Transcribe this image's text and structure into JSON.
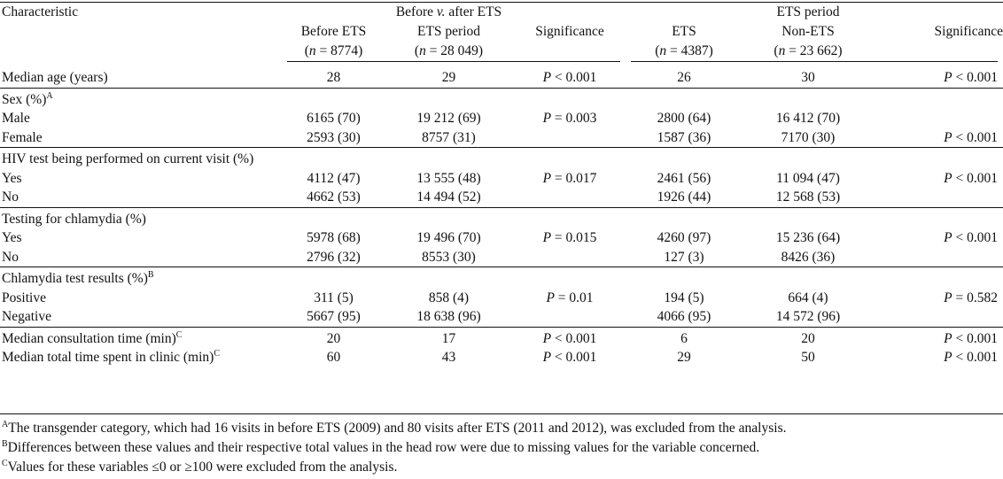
{
  "header": {
    "characteristic": "Characteristic",
    "group1": "Before v. after ETS",
    "group1_prefix": "Before ",
    "group1_v": "v.",
    "group1_suffix": " after ETS",
    "group2": "ETS period",
    "col1": {
      "label": "Before ETS",
      "n_prefix": "(",
      "n_var": "n",
      "n_value": " = 8774)"
    },
    "col2": {
      "label": "ETS period",
      "n_prefix": "(",
      "n_var": "n",
      "n_value": " = 28 049)"
    },
    "col3": {
      "label": "Significance"
    },
    "col4": {
      "label": "ETS",
      "n_prefix": "(",
      "n_var": "n",
      "n_value": " = 4387)"
    },
    "col5": {
      "label": "Non-ETS",
      "n_prefix": "(",
      "n_var": "n",
      "n_value": " = 23 662)"
    },
    "col6": {
      "label": "Significance"
    }
  },
  "rows": {
    "median_age": {
      "label": "Median age (years)",
      "v1": "28",
      "v2": "29",
      "sig1_p": "P",
      "sig1": " < 0.001",
      "v4": "26",
      "v5": "30",
      "sig2_p": "P",
      "sig2": " < 0.001"
    },
    "sex": {
      "label": "Sex (%)",
      "sup": "A"
    },
    "male": {
      "label": "Male",
      "v1": "6165 (70)",
      "v2": "19 212 (69)",
      "sig1_p": "P",
      "sig1": " = 0.003",
      "v4": "2800 (64)",
      "v5": "16 412 (70)"
    },
    "female": {
      "label": "Female",
      "v1": "2593 (30)",
      "v2": "8757 (31)",
      "v4": "1587 (36)",
      "v5": "7170 (30)",
      "sig2_p": "P",
      "sig2": " < 0.001"
    },
    "hiv": {
      "label": "HIV test being performed on current visit (%)"
    },
    "hiv_yes": {
      "label": "Yes",
      "v1": "4112 (47)",
      "v2": "13 555 (48)",
      "sig1_p": "P",
      "sig1": " = 0.017",
      "v4": "2461 (56)",
      "v5": "11 094 (47)",
      "sig2_p": "P",
      "sig2": " < 0.001"
    },
    "hiv_no": {
      "label": "No",
      "v1": "4662 (53)",
      "v2": "14 494 (52)",
      "v4": "1926 (44)",
      "v5": "12 568 (53)"
    },
    "chl": {
      "label": "Testing for chlamydia (%)"
    },
    "chl_yes": {
      "label": "Yes",
      "v1": "5978 (68)",
      "v2": "19 496 (70)",
      "sig1_p": "P",
      "sig1": " = 0.015",
      "v4": "4260 (97)",
      "v5": "15 236 (64)",
      "sig2_p": "P",
      "sig2": " < 0.001"
    },
    "chl_no": {
      "label": "No",
      "v1": "2796 (32)",
      "v2": "8553 (30)",
      "v4": "127 (3)",
      "v5": "8426 (36)"
    },
    "res": {
      "label": "Chlamydia test results (%)",
      "sup": "B"
    },
    "res_pos": {
      "label": "Positive",
      "v1": "311 (5)",
      "v2": "858 (4)",
      "sig1_p": "P",
      "sig1": " = 0.01",
      "v4": "194 (5)",
      "v5": "664 (4)",
      "sig2_p": "P",
      "sig2": " = 0.582"
    },
    "res_neg": {
      "label": "Negative",
      "v1": "5667 (95)",
      "v2": "18 638 (96)",
      "v4": "4066 (95)",
      "v5": "14 572 (96)"
    },
    "consult": {
      "label": "Median consultation time (min)",
      "sup": "C",
      "v1": "20",
      "v2": "17",
      "sig1_p": "P",
      "sig1": " < 0.001",
      "v4": "6",
      "v5": "20",
      "sig2_p": "P",
      "sig2": " < 0.001"
    },
    "total": {
      "label": "Median total time spent in clinic (min)",
      "sup": "C",
      "v1": "60",
      "v2": "43",
      "sig1_p": "P",
      "sig1": " < 0.001",
      "v4": "29",
      "v5": "50",
      "sig2_p": "P",
      "sig2": " < 0.001"
    }
  },
  "footnotes": {
    "a_mark": "A",
    "a_text": "The transgender category, which had 16 visits in before ETS (2009) and 80 visits after ETS (2011 and 2012), was excluded from the analysis.",
    "b_mark": "B",
    "b_text": "Differences between these values and their respective total values in the head row were due to missing values for the variable concerned.",
    "c_mark": "C",
    "c_text": "Values for these variables ≤0 or ≥100 were excluded from the analysis."
  }
}
